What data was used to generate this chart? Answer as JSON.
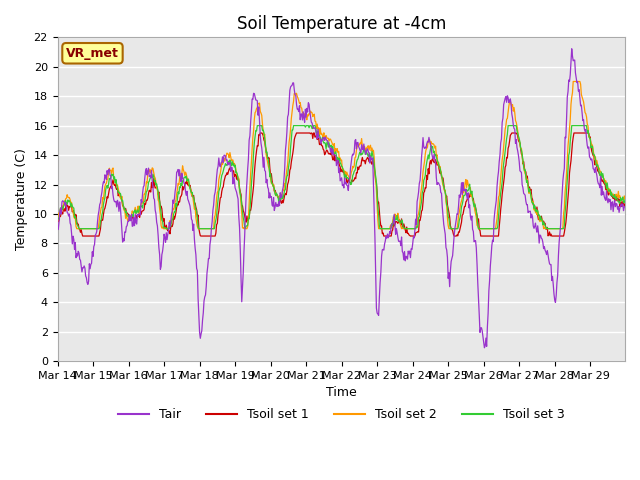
{
  "title": "Soil Temperature at -4cm",
  "xlabel": "Time",
  "ylabel": "Temperature (C)",
  "ylim": [
    0,
    22
  ],
  "yticks": [
    0,
    2,
    4,
    6,
    8,
    10,
    12,
    14,
    16,
    18,
    20,
    22
  ],
  "x_labels": [
    "Mar 14",
    "Mar 15",
    "Mar 16",
    "Mar 17",
    "Mar 18",
    "Mar 19",
    "Mar 20",
    "Mar 21",
    "Mar 22",
    "Mar 23",
    "Mar 24",
    "Mar 25",
    "Mar 26",
    "Mar 27",
    "Mar 28",
    "Mar 29"
  ],
  "n_days": 16,
  "pts_per_day": 48,
  "tair_color": "#9933CC",
  "tsoil1_color": "#CC0000",
  "tsoil2_color": "#FF9900",
  "tsoil3_color": "#33CC33",
  "plot_bg_color": "#E8E8E8",
  "annotation_text": "VR_met",
  "annotation_bg": "#FFFF99",
  "annotation_border": "#AA6600",
  "legend_items": [
    "Tair",
    "Tsoil set 1",
    "Tsoil set 2",
    "Tsoil set 3"
  ]
}
